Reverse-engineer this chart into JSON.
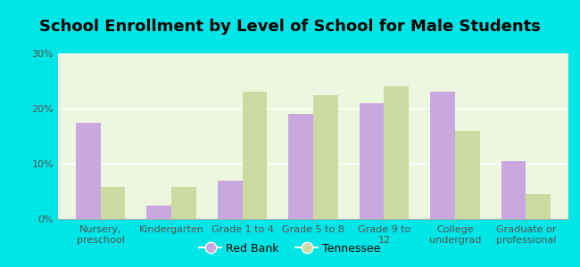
{
  "title": "School Enrollment by Level of School for Male Students",
  "categories": [
    "Nursery,\npreschool",
    "Kindergarten",
    "Grade 1 to 4",
    "Grade 5 to 8",
    "Grade 9 to\n12",
    "College\nundergrad",
    "Graduate or\nprofessional"
  ],
  "red_bank": [
    17.5,
    2.5,
    7.0,
    19.0,
    21.0,
    23.0,
    10.5
  ],
  "tennessee": [
    5.8,
    5.8,
    23.0,
    22.5,
    24.0,
    16.0,
    4.5
  ],
  "bar_color_rb": "#c9a8e0",
  "bar_color_tn": "#ccd9a0",
  "background_color": "#00e5e5",
  "plot_bg_color": "#eeffee",
  "ylim": [
    0,
    30
  ],
  "yticks": [
    0,
    10,
    20,
    30
  ],
  "ytick_labels": [
    "0%",
    "10%",
    "20%",
    "30%"
  ],
  "legend_label_rb": "Red Bank",
  "legend_label_tn": "Tennessee",
  "bar_width": 0.35,
  "title_fontsize": 13,
  "tick_fontsize": 8,
  "legend_fontsize": 9
}
